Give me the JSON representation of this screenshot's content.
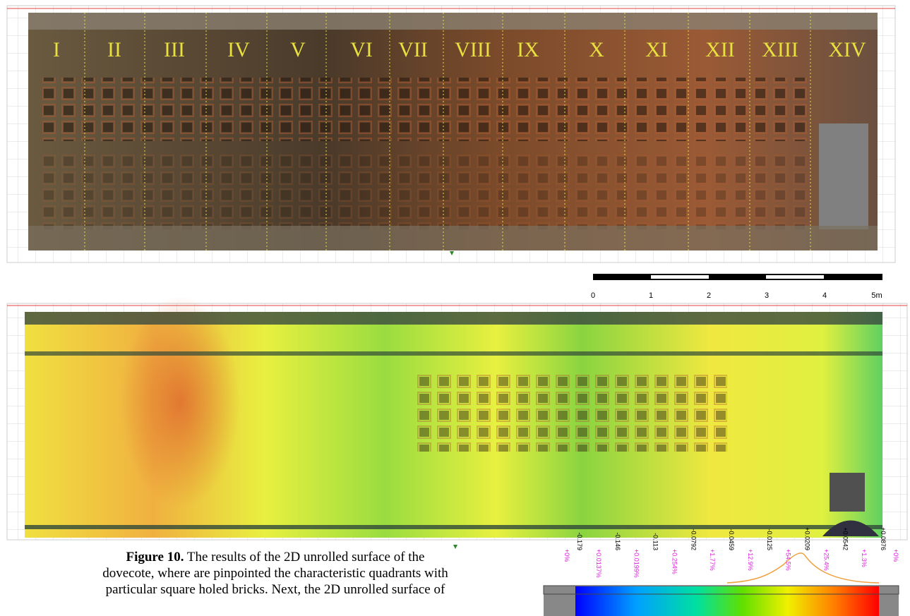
{
  "figure": {
    "sections": [
      "I",
      "II",
      "III",
      "IV",
      "V",
      "VI",
      "VII",
      "VIII",
      "IX",
      "X",
      "XI",
      "XII",
      "XIII",
      "XIV"
    ],
    "scale_bar": {
      "labels": [
        "0",
        "1",
        "2",
        "3",
        "4",
        "5m"
      ]
    },
    "legend": {
      "values": [
        "-0.179",
        "-0.146",
        "-0.113",
        "-0.0792",
        "-0.0459",
        "-0.0125",
        "+0.0209",
        "+0.0542",
        "+0.0876"
      ],
      "percentages": [
        "+0%",
        "+0.0137%",
        "+0.0199%",
        "+0.254%",
        "+1.77%",
        "+12.9%",
        "+54.5%",
        "+25.4%",
        "+1.3%",
        "+0%"
      ]
    },
    "caption": {
      "label": "Figure 10.",
      "lines": [
        " The results of the 2D unrolled surface of the",
        "dovecote, where are pinpointed the characteristic quadrants with",
        "particular square holed bricks. Next, the 2D unrolled surface of"
      ]
    }
  }
}
